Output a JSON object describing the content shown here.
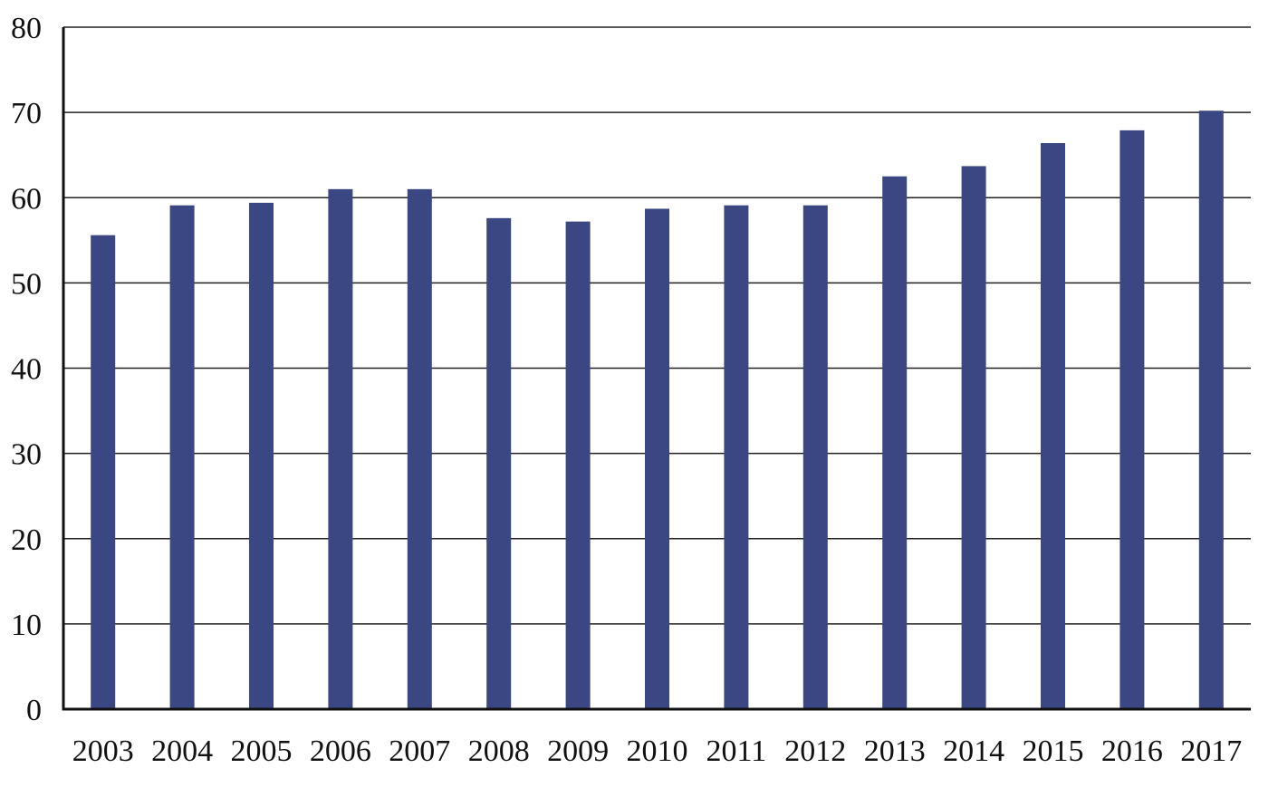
{
  "chart_data": {
    "type": "bar",
    "categories": [
      "2003",
      "2004",
      "2005",
      "2006",
      "2007",
      "2008",
      "2009",
      "2010",
      "2011",
      "2012",
      "2013",
      "2014",
      "2015",
      "2016",
      "2017"
    ],
    "values": [
      55.6,
      59.1,
      59.4,
      61.0,
      61.0,
      57.6,
      57.2,
      58.7,
      59.1,
      59.1,
      62.5,
      63.7,
      66.4,
      67.9,
      70.2
    ],
    "title": "",
    "xlabel": "",
    "ylabel": "",
    "ylim": [
      0,
      80
    ],
    "yticks": [
      0,
      10,
      20,
      30,
      40,
      50,
      60,
      70,
      80
    ],
    "grid": true,
    "bar_color": "#3a4783",
    "axis_color": "#111111"
  }
}
